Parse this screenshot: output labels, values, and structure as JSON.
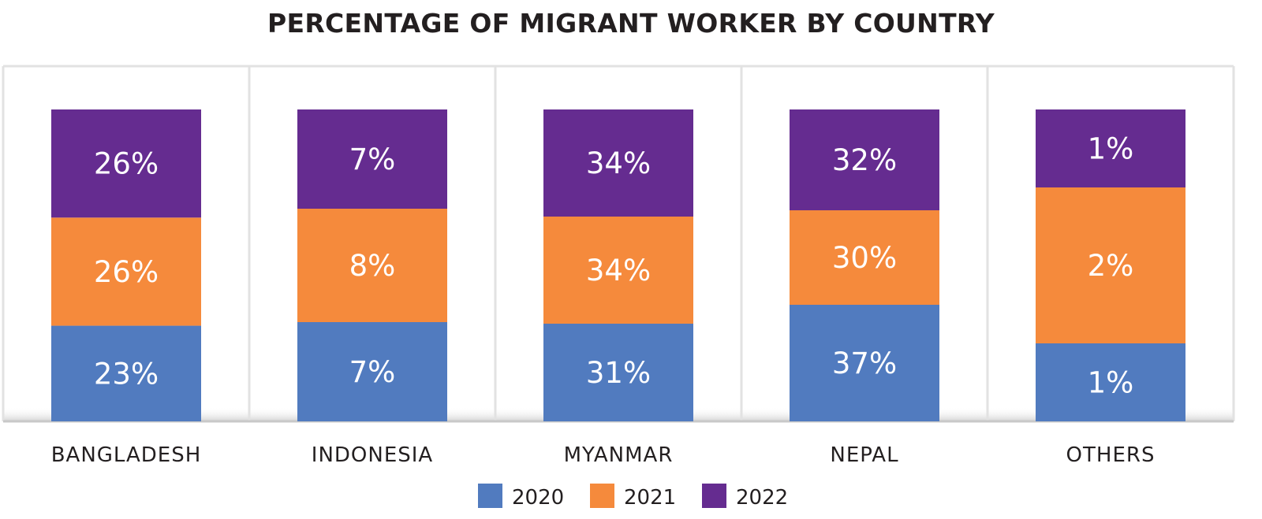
{
  "title": "PERCENTAGE OF MIGRANT WORKER BY COUNTRY",
  "colors": {
    "2020": "#517bbf",
    "2021": "#f58a3c",
    "2022": "#652c90",
    "label": "#ffffff",
    "text": "#231f20",
    "grid": "#e2e2e2"
  },
  "legend": {
    "position": "bottom",
    "items": [
      "2020",
      "2021",
      "2022"
    ]
  },
  "chart_data": {
    "type": "bar",
    "stacked": true,
    "normalized_per_category": true,
    "title": "PERCENTAGE OF MIGRANT WORKER BY COUNTRY",
    "xlabel": "",
    "ylabel": "",
    "categories": [
      "BANGLADESH",
      "INDONESIA",
      "MYANMAR",
      "NEPAL",
      "OTHERS"
    ],
    "series": [
      {
        "name": "2020",
        "values": [
          23,
          7,
          31,
          37,
          1
        ],
        "labels": [
          "23%",
          "7%",
          "31%",
          "37%",
          "1%"
        ]
      },
      {
        "name": "2021",
        "values": [
          26,
          8,
          34,
          30,
          2
        ],
        "labels": [
          "26%",
          "8%",
          "34%",
          "30%",
          "2%"
        ]
      },
      {
        "name": "2022",
        "values": [
          26,
          7,
          34,
          32,
          1
        ],
        "labels": [
          "26%",
          "7%",
          "34%",
          "32%",
          "1%"
        ]
      }
    ],
    "grid": false
  }
}
